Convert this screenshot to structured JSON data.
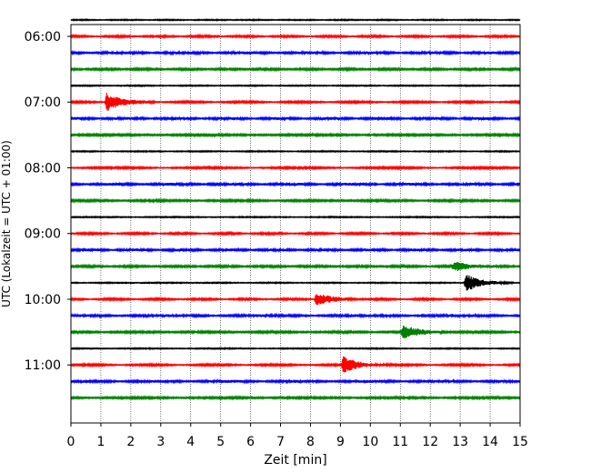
{
  "chart_data": {
    "type": "line",
    "subtype": "helicorder",
    "title": "",
    "xlabel": "Zeit  [min]",
    "ylabel": "UTC (Lokalzeit = UTC + 01:00)",
    "xlim": [
      0,
      15
    ],
    "x_ticks": [
      "0",
      "1",
      "2",
      "3",
      "4",
      "5",
      "6",
      "7",
      "8",
      "9",
      "10",
      "11",
      "12",
      "13",
      "14",
      "15"
    ],
    "y_ticks": [
      "06:00",
      "07:00",
      "08:00",
      "09:00",
      "10:00",
      "11:00"
    ],
    "grid": "vertical dotted lines at every minute",
    "trace_colors": [
      "#000000",
      "#ff0000",
      "#0000ff",
      "#008000"
    ],
    "trace_count": 24,
    "trace_start": "05:45",
    "minutes_per_trace": 15,
    "event_markers": [
      {
        "trace": 5,
        "minute": 1.2,
        "amplitude": 1.0
      },
      {
        "trace": 15,
        "minute": 12.8,
        "amplitude": 0.5
      },
      {
        "trace": 16,
        "minute": 13.2,
        "amplitude": 1.0
      },
      {
        "trace": 17,
        "minute": 8.2,
        "amplitude": 0.7
      },
      {
        "trace": 19,
        "minute": 11.1,
        "amplitude": 0.8
      },
      {
        "trace": 21,
        "minute": 9.1,
        "amplitude": 0.9
      }
    ]
  }
}
